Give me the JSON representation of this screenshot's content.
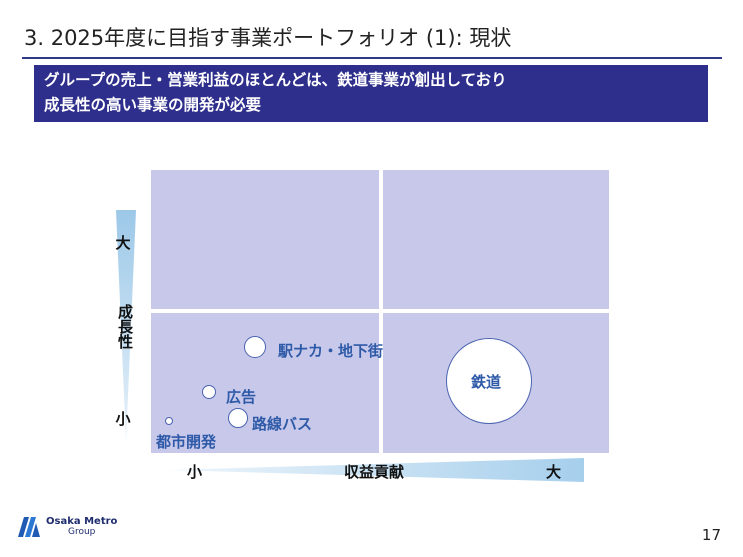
{
  "slide": {
    "title": "3. 2025年度に目指す事業ポートフォリオ (1): 現状",
    "banner_line1": "グループの売上・営業利益のほとんどは、鉄道事業が創出しており",
    "banner_line2": "成長性の高い事業の開発が必要",
    "page_number": "17"
  },
  "matrix": {
    "y_axis": {
      "label": "成長性",
      "high": "大",
      "low": "小"
    },
    "x_axis": {
      "label": "収益貢献",
      "low": "小",
      "high": "大"
    },
    "businesses": [
      {
        "name": "駅ナカ・地下街"
      },
      {
        "name": "広告"
      },
      {
        "name": "路線バス"
      },
      {
        "name": "都市開発"
      },
      {
        "name": "鉄道"
      }
    ],
    "colors": {
      "quadrant": "#c8c8ea",
      "bubble_border": "#4a63b0",
      "bubble_text": "#2e5aa8",
      "banner": "#2e2e8c"
    }
  },
  "logo": {
    "line1": "Osaka Metro",
    "line2": "Group"
  }
}
